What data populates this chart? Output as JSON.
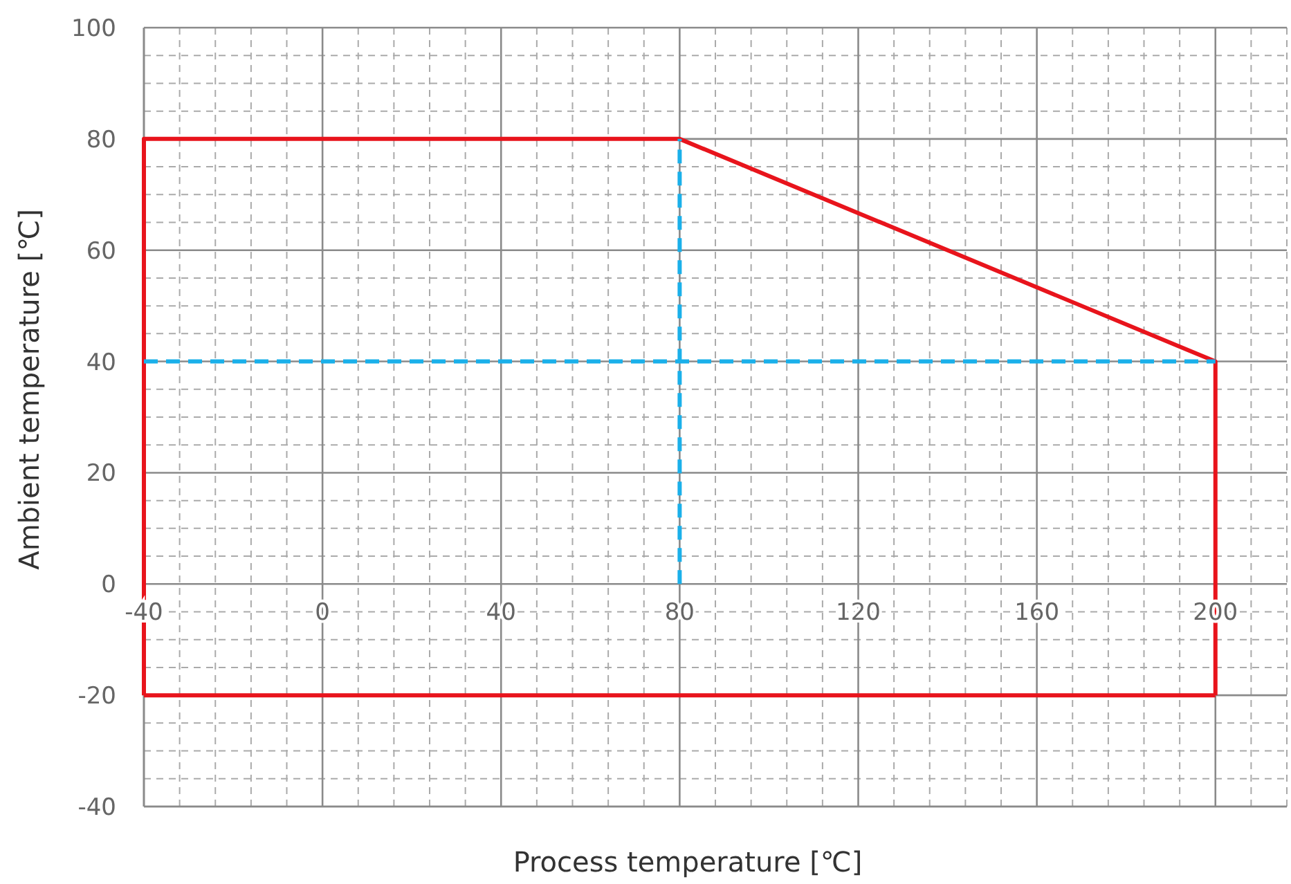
{
  "chart_data": {
    "type": "line",
    "xlabel": "Process temperature [℃]",
    "ylabel": "Ambient temperature [℃]",
    "xlim": [
      -40,
      216
    ],
    "ylim": [
      -40,
      100
    ],
    "xticks": [
      -40,
      0,
      40,
      80,
      120,
      160,
      200
    ],
    "yticks": [
      -40,
      -20,
      0,
      20,
      40,
      60,
      80,
      100
    ],
    "grid": true,
    "marker": "none",
    "series": [
      {
        "color": "#e8141c",
        "x": [
          -40,
          -40,
          80,
          200,
          200
        ],
        "values": [
          -20,
          80,
          80,
          40,
          -20
        ],
        "line_style": "solid"
      },
      {
        "color": "#e8141c",
        "x": [
          -40,
          200
        ],
        "values": [
          -20,
          -20
        ],
        "line_style": "solid"
      },
      {
        "color": "#1ab0ea",
        "x": [
          -40,
          200
        ],
        "values": [
          40,
          40
        ],
        "line_style": "dashed"
      },
      {
        "color": "#1ab0ea",
        "x": [
          80,
          80
        ],
        "values": [
          0,
          80
        ],
        "line_style": "dashed"
      }
    ]
  }
}
